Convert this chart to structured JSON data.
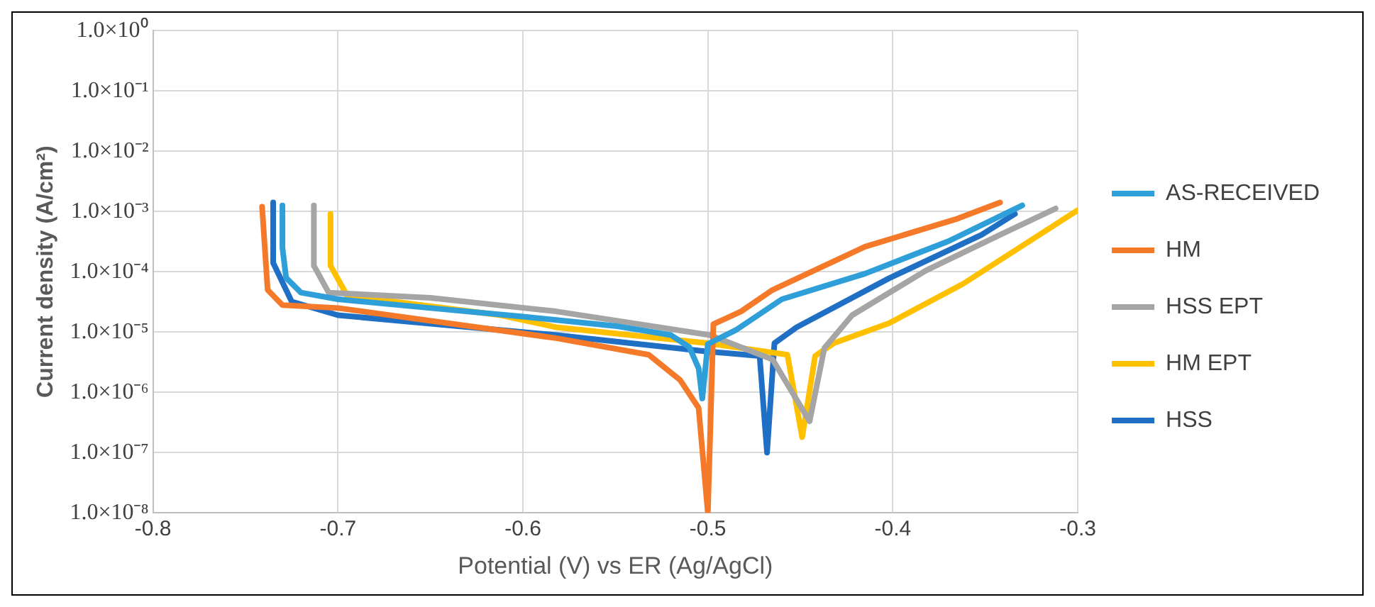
{
  "chart_data": {
    "type": "line",
    "xlabel": "Potential (V) vs ER (Ag/AgCl)",
    "ylabel": "Current density (A/cm²)",
    "log": "y",
    "grid": true,
    "legend": "right",
    "marker": "none",
    "line_style": "solid",
    "xlim": [
      -0.8,
      -0.3
    ],
    "xticks": [
      -0.8,
      -0.7,
      -0.6,
      -0.5,
      -0.4,
      -0.3
    ],
    "ylim": [
      1e-08,
      1
    ],
    "yticks": [
      {
        "value": 1,
        "label": "1.0×10⁰"
      },
      {
        "value": 0.1,
        "label": "1.0×10⁻¹"
      },
      {
        "value": 0.01,
        "label": "1.0×10⁻²"
      },
      {
        "value": 0.001,
        "label": "1.0×10⁻³"
      },
      {
        "value": 0.0001,
        "label": "1.0×10⁻⁴"
      },
      {
        "value": 1e-05,
        "label": "1.0×10⁻⁵"
      },
      {
        "value": 1e-06,
        "label": "1.0×10⁻⁶"
      },
      {
        "value": 1e-07,
        "label": "1.0×10⁻⁷"
      },
      {
        "value": 1e-08,
        "label": "1.0×10⁻⁸"
      }
    ],
    "series": [
      {
        "name": "AS-RECEIVED",
        "color": "#2e9fd8",
        "x": [
          -0.73,
          -0.73,
          -0.728,
          -0.72,
          -0.7,
          -0.65,
          -0.6,
          -0.55,
          -0.52,
          -0.51,
          -0.505,
          -0.503,
          -0.5,
          -0.485,
          -0.46,
          -0.415,
          -0.37,
          -0.33
        ],
        "values": [
          0.00126,
          0.00025,
          7.9e-05,
          4.5e-05,
          3.5e-05,
          2.5e-05,
          1.8e-05,
          1.26e-05,
          8.9e-06,
          5.6e-06,
          2.5e-06,
          7.9e-07,
          6.3e-06,
          1.07e-05,
          3.5e-05,
          9.3e-05,
          0.00032,
          0.00126
        ]
      },
      {
        "name": "HM",
        "color": "#f47a2a",
        "x": [
          -0.741,
          -0.738,
          -0.73,
          -0.7,
          -0.582,
          -0.532,
          -0.515,
          -0.505,
          -0.5,
          -0.497,
          -0.482,
          -0.465,
          -0.415,
          -0.365,
          -0.342
        ],
        "values": [
          0.0012,
          5e-05,
          2.8e-05,
          2.5e-05,
          7.9e-06,
          4.2e-06,
          1.6e-06,
          5.5e-07,
          1e-08,
          1.35e-05,
          2.2e-05,
          5e-05,
          0.00026,
          0.00076,
          0.00141
        ]
      },
      {
        "name": "HSS EPT",
        "color": "#a5a5a5",
        "x": [
          -0.713,
          -0.713,
          -0.705,
          -0.65,
          -0.582,
          -0.499,
          -0.465,
          -0.445,
          -0.437,
          -0.422,
          -0.382,
          -0.342,
          -0.312
        ],
        "values": [
          0.00126,
          0.000126,
          4.5e-05,
          3.7e-05,
          2.2e-05,
          8.9e-06,
          3.5e-06,
          3.3e-07,
          5.4e-06,
          1.9e-05,
          0.000105,
          0.00041,
          0.00112
        ]
      },
      {
        "name": "HM EPT",
        "color": "#ffc000",
        "x": [
          -0.704,
          -0.704,
          -0.695,
          -0.612,
          -0.582,
          -0.5,
          -0.457,
          -0.449,
          -0.442,
          -0.432,
          -0.402,
          -0.362,
          -0.3
        ],
        "values": [
          0.00091,
          0.000126,
          4e-05,
          1.9e-05,
          1.2e-05,
          6.5e-06,
          4.2e-06,
          1.8e-07,
          4e-06,
          6.5e-06,
          1.4e-05,
          6.3e-05,
          0.00105
        ]
      },
      {
        "name": "HSS",
        "color": "#1f6fc5",
        "x": [
          -0.735,
          -0.735,
          -0.725,
          -0.7,
          -0.582,
          -0.502,
          -0.472,
          -0.468,
          -0.464,
          -0.452,
          -0.402,
          -0.352,
          -0.334
        ],
        "values": [
          0.00141,
          0.00014,
          3.2e-05,
          1.9e-05,
          8.9e-06,
          4.8e-06,
          4e-06,
          1e-07,
          6.5e-06,
          1.2e-05,
          7.8e-05,
          0.00041,
          0.00091
        ]
      }
    ]
  }
}
